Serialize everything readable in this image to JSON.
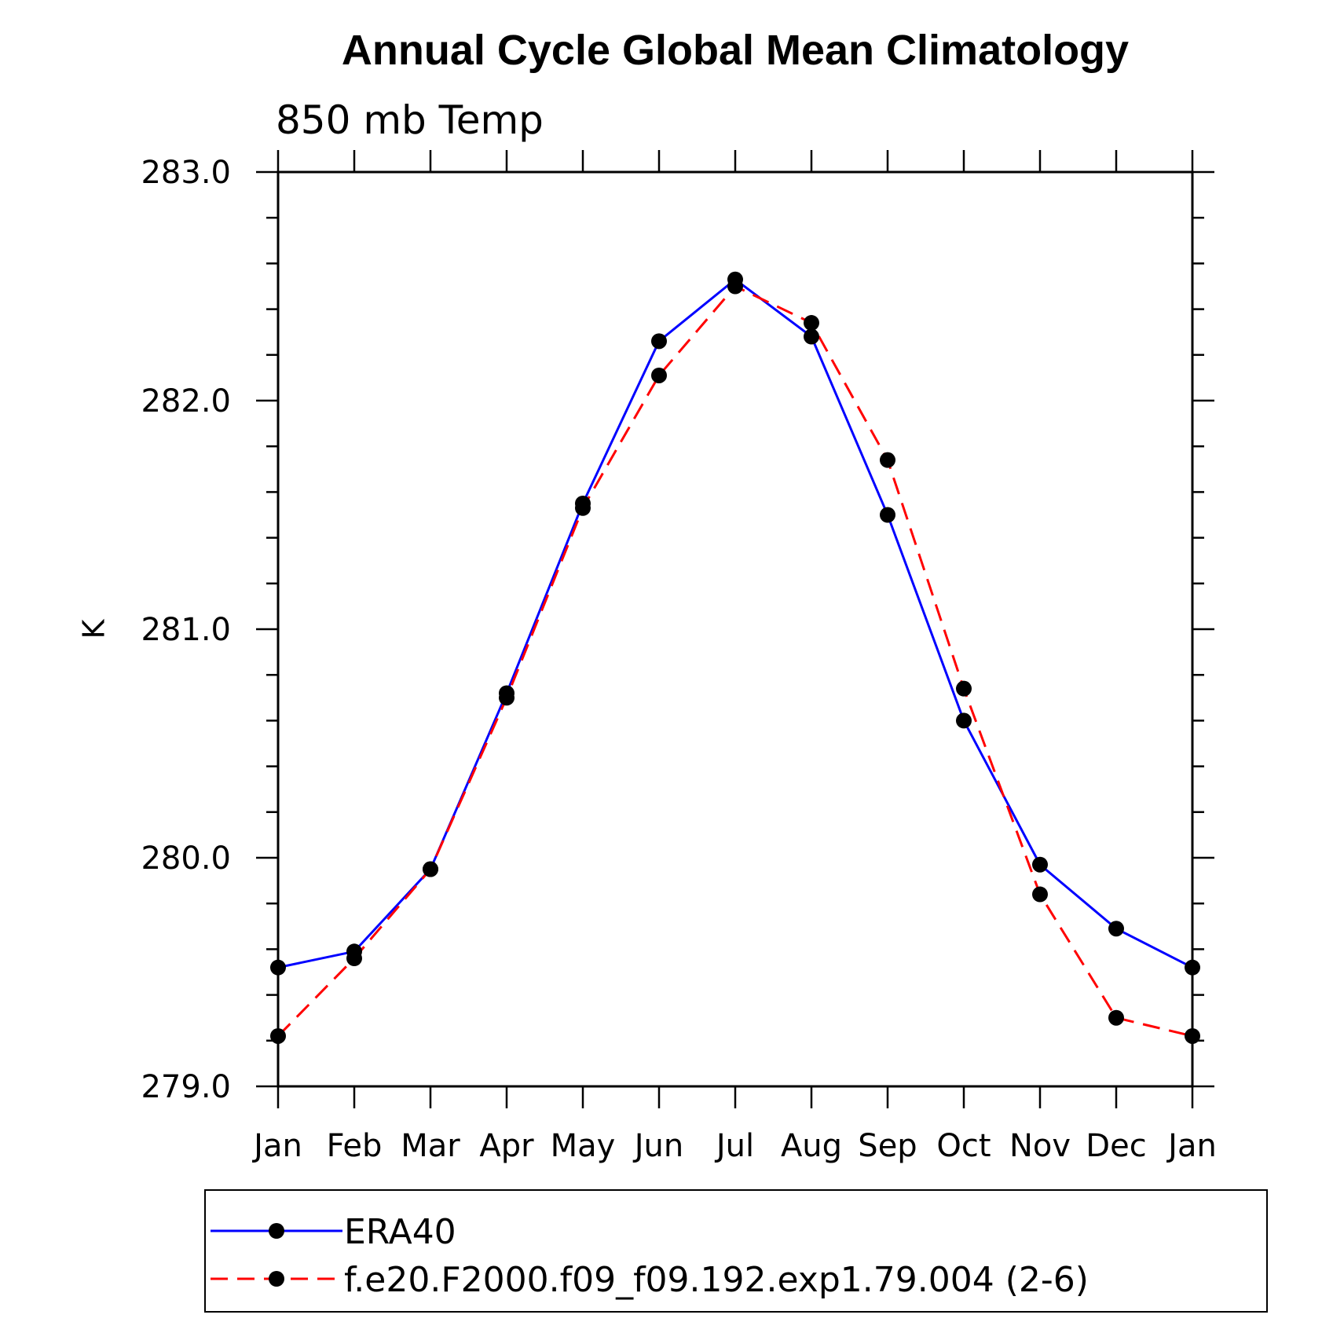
{
  "chart_data": {
    "type": "line",
    "title": "Annual Cycle Global Mean Climatology",
    "subtitle": "850 mb Temp",
    "ylabel": "K",
    "xlabel": "",
    "ylim": [
      279.0,
      283.0
    ],
    "ytick_values": [
      279.0,
      280.0,
      281.0,
      282.0,
      283.0
    ],
    "ytick_labels": [
      "279.0",
      "280.0",
      "281.0",
      "282.0",
      "283.0"
    ],
    "categories": [
      "Jan",
      "Feb",
      "Mar",
      "Apr",
      "May",
      "Jun",
      "Jul",
      "Aug",
      "Sep",
      "Oct",
      "Nov",
      "Dec",
      "Jan"
    ],
    "series": [
      {
        "name": "ERA40",
        "color": "#0000ff",
        "style": "solid",
        "marker": "filled-circle",
        "values": [
          279.52,
          279.59,
          279.95,
          280.72,
          281.55,
          282.26,
          282.53,
          282.28,
          281.5,
          280.6,
          279.97,
          279.69,
          279.52
        ]
      },
      {
        "name": "f.e20.F2000.f09_f09.192.exp1.79.004 (2-6)",
        "color": "#ff0000",
        "style": "dashed",
        "marker": "filled-circle",
        "values": [
          279.22,
          279.56,
          279.95,
          280.7,
          281.53,
          282.11,
          282.5,
          282.34,
          281.74,
          280.74,
          279.84,
          279.3,
          279.22
        ]
      }
    ],
    "legend": {
      "placement": "bottom"
    },
    "grid": false
  }
}
